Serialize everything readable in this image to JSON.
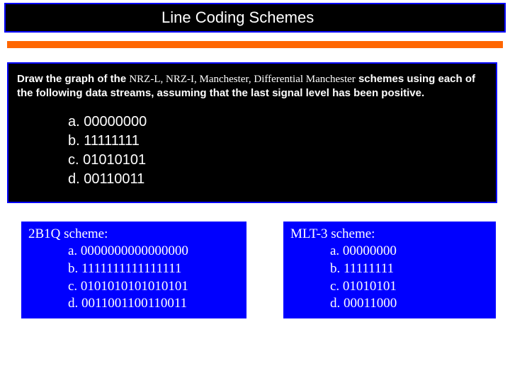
{
  "title": "Line Coding Schemes",
  "question": {
    "prefix": "Draw the graph of the ",
    "schemes": "NRZ-L, NRZ-I, Manchester, Differential Manchester",
    "suffix": " schemes using each of the following data streams, assuming that the last signal level has been positive."
  },
  "streams": {
    "a": "a. 00000000",
    "b": "b. 11111111",
    "c": "c. 01010101",
    "d": "d. 00110011"
  },
  "left_box": {
    "title": "2B1Q scheme:",
    "a": "a. 0000000000000000",
    "b": "b. 1111111111111111",
    "c": "c. 0101010101010101",
    "d": "d. 0011001100110011"
  },
  "right_box": {
    "title": "MLT-3 scheme:",
    "a": "a. 00000000",
    "b": "b. 11111111",
    "c": "c. 01010101",
    "d": "d. 00011000"
  },
  "colors": {
    "title_bg": "#000000",
    "title_border": "#0000ff",
    "title_text": "#ffffff",
    "rule": "#ff6600",
    "main_bg": "#000000",
    "main_border": "#0000ff",
    "main_text": "#ffffff",
    "box_bg": "#0000ff",
    "box_text": "#ffffff",
    "page_bg": "#ffffff"
  }
}
